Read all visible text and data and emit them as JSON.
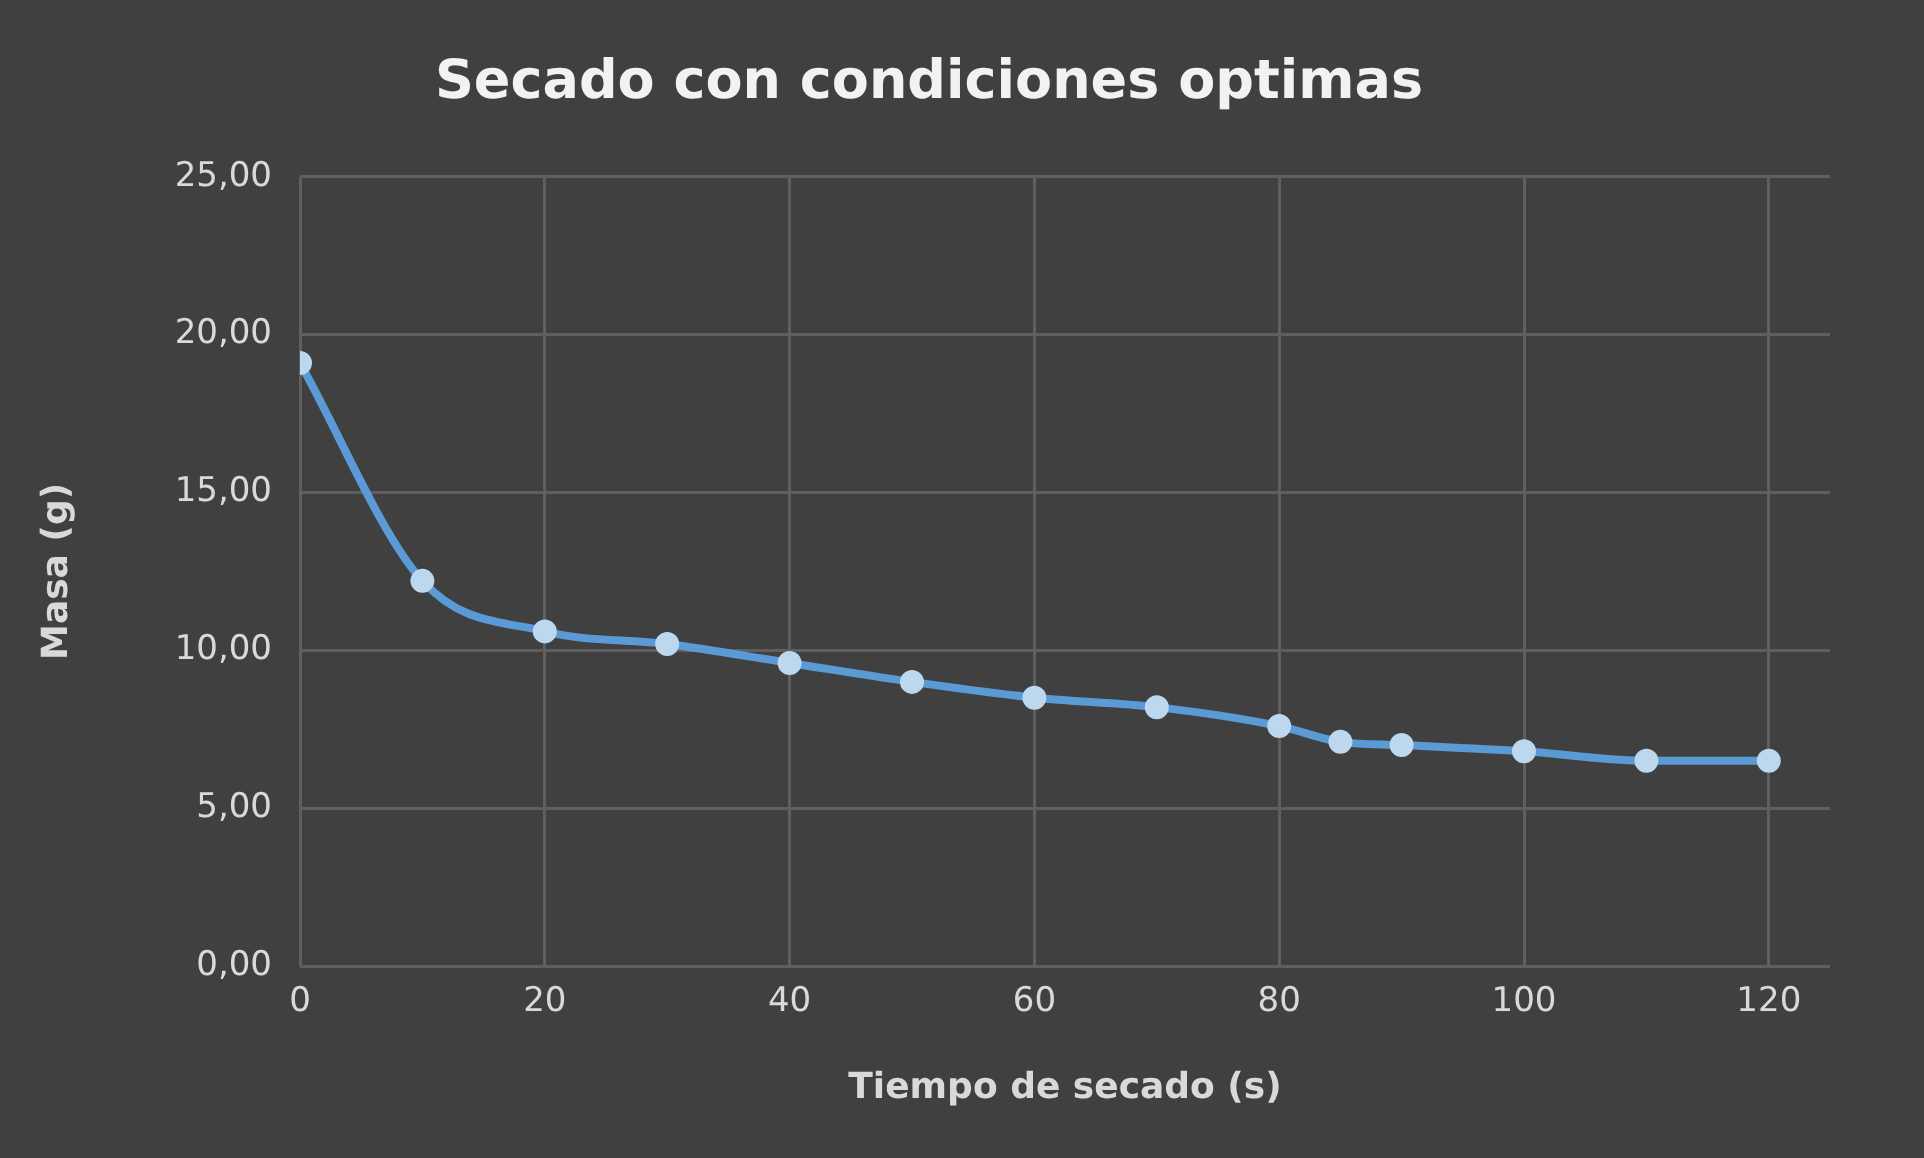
{
  "chart_data": {
    "type": "line",
    "title": "Secado con condiciones optimas",
    "xlabel": "Tiempo de secado (s)",
    "ylabel": "Masa (g)",
    "x": [
      0,
      10,
      20,
      30,
      40,
      50,
      60,
      70,
      80,
      85,
      90,
      100,
      110,
      120
    ],
    "series": [
      {
        "color": "#5b9bd5",
        "values": [
          19.1,
          12.2,
          10.6,
          10.2,
          9.6,
          9.0,
          8.5,
          8.2,
          7.6,
          7.1,
          7.0,
          6.8,
          6.5,
          6.5
        ]
      }
    ],
    "xlim": [
      0,
      125
    ],
    "xticks": [
      0,
      20,
      40,
      60,
      80,
      100,
      120
    ],
    "ylim": [
      0,
      25
    ],
    "yticks": [
      {
        "value": 0,
        "label": "0,00"
      },
      {
        "value": 5,
        "label": "5,00"
      },
      {
        "value": 10,
        "label": "10,00"
      },
      {
        "value": 15,
        "label": "15,00"
      },
      {
        "value": 20,
        "label": "20,00"
      },
      {
        "value": 25,
        "label": "25,00"
      }
    ],
    "grid": true,
    "legend": false,
    "marker": "circle",
    "line_style": "solid"
  }
}
